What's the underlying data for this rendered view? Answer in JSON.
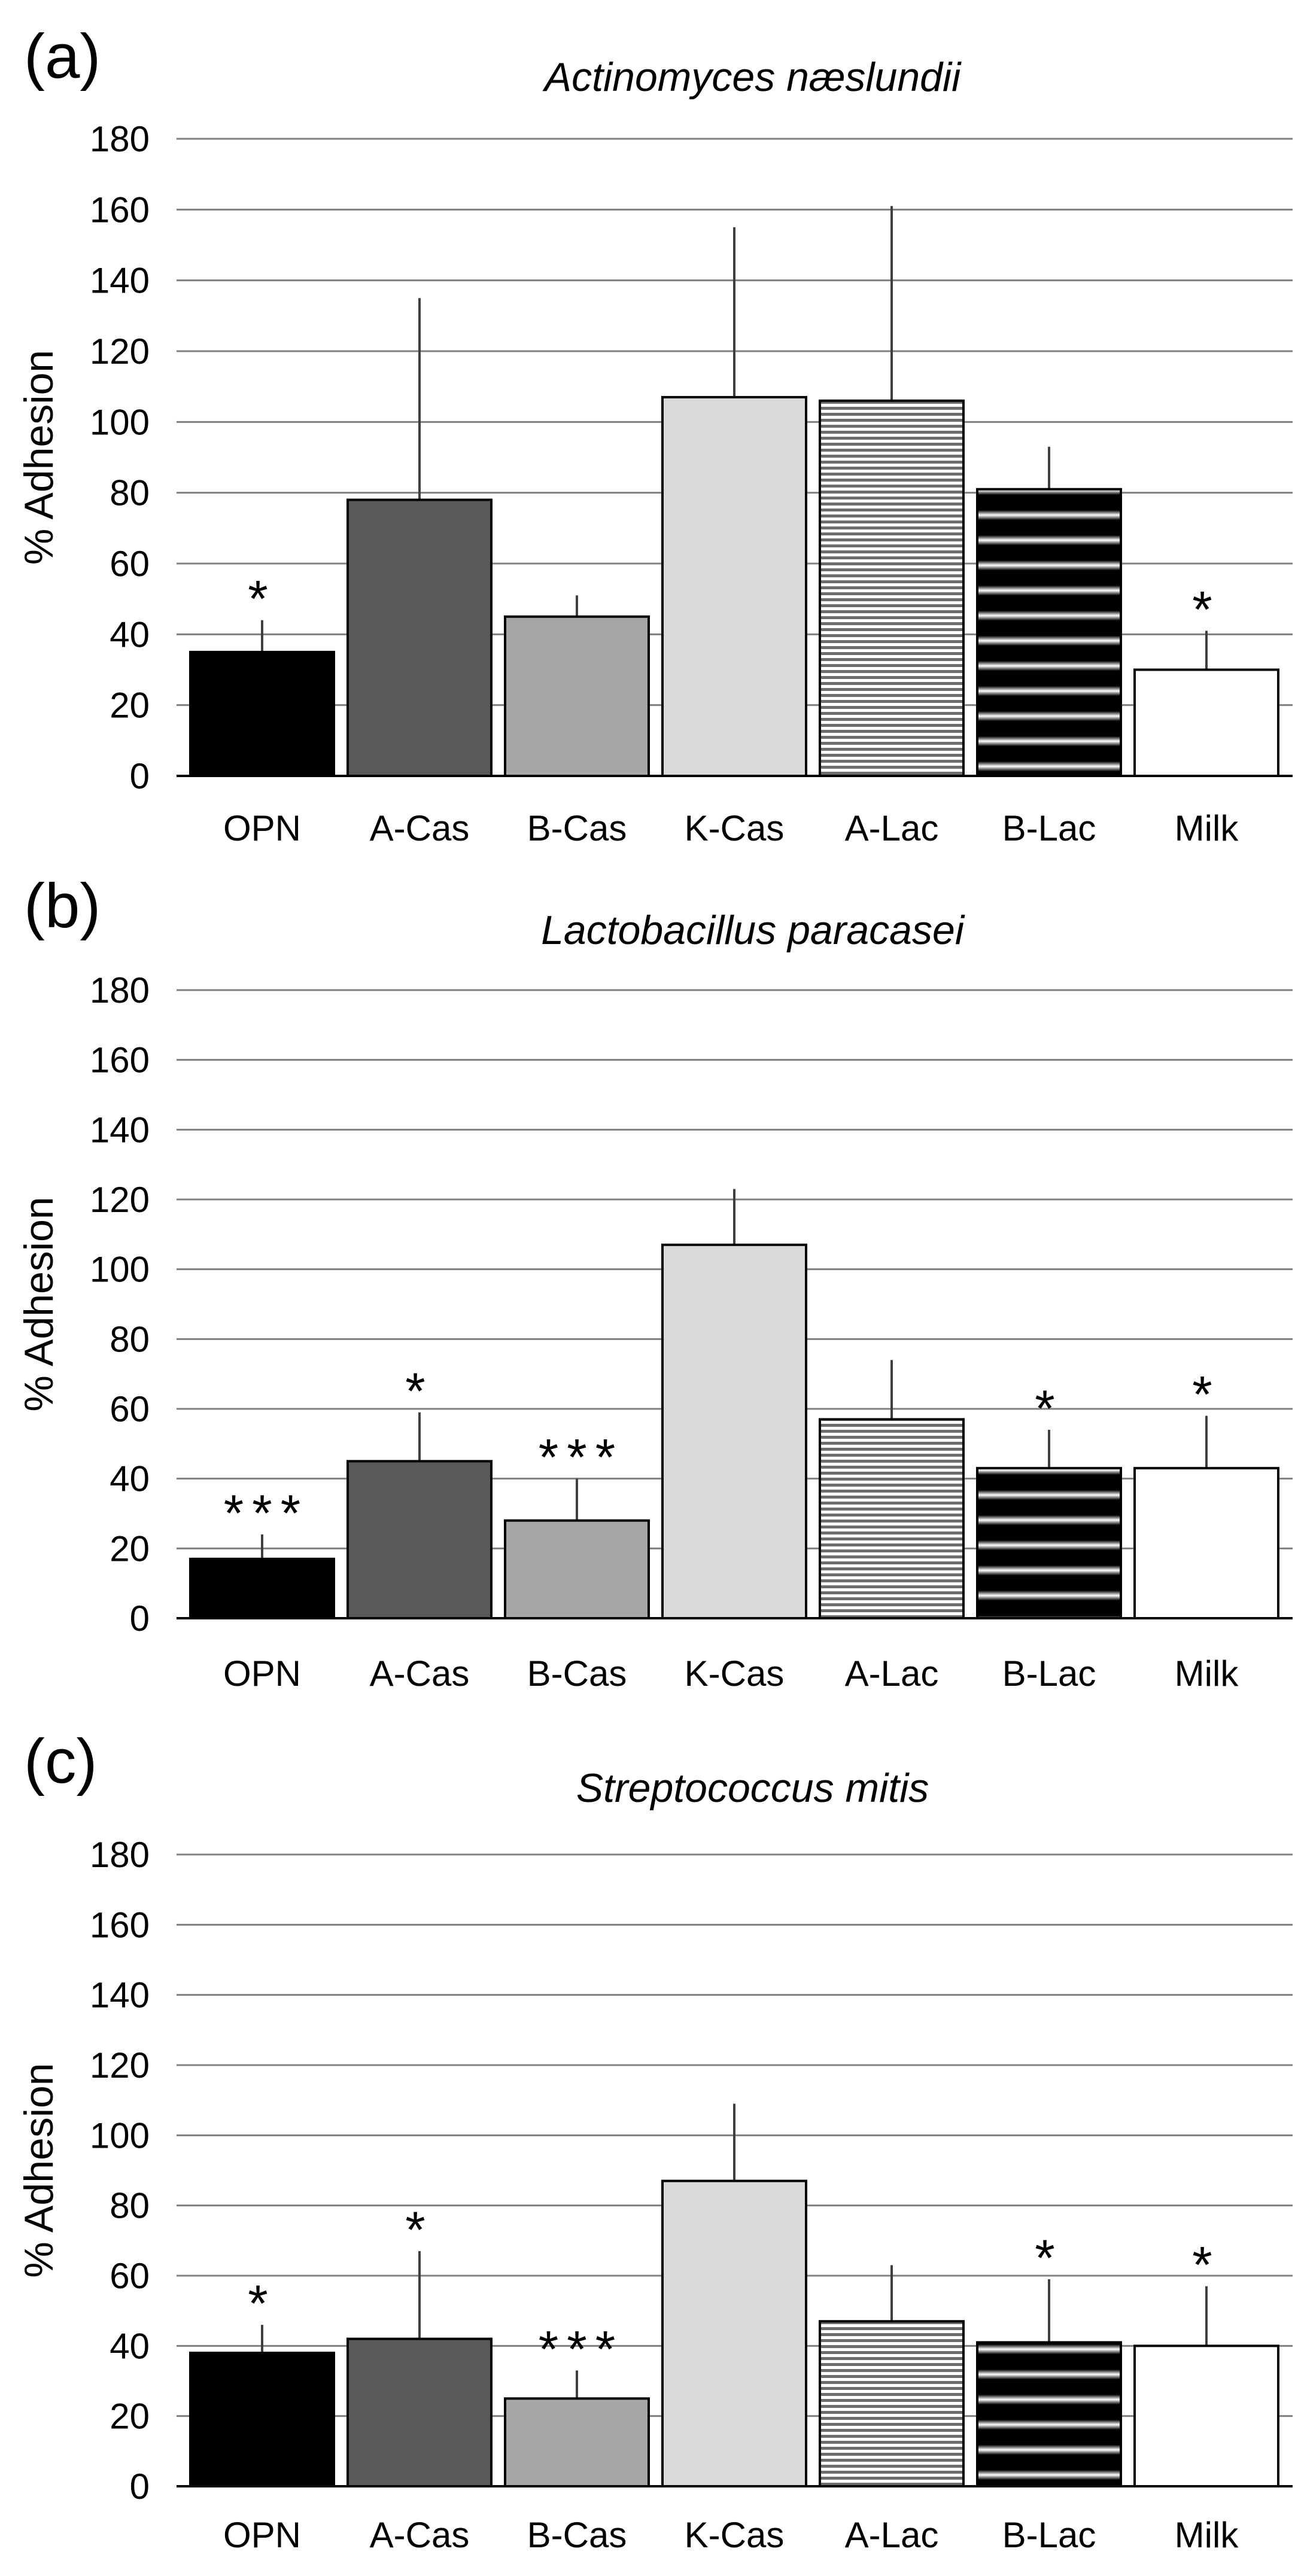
{
  "chart_data": [
    {
      "type": "bar",
      "panel": "(a)",
      "title": "Actinomyces næslundii",
      "ylabel": "% Adhesion",
      "xlabel": "",
      "ylim": [
        0,
        180
      ],
      "yticks": [
        0,
        20,
        40,
        60,
        80,
        100,
        120,
        140,
        160,
        180
      ],
      "categories": [
        "OPN",
        "A-Cas",
        "B-Cas",
        "K-Cas",
        "A-Lac",
        "B-Lac",
        "Milk"
      ],
      "values": [
        35,
        78,
        45,
        107,
        106,
        81,
        30
      ],
      "errors": [
        9,
        57,
        6,
        48,
        55,
        12,
        11
      ],
      "significance": [
        "*",
        "",
        "",
        "",
        "",
        "",
        "*"
      ]
    },
    {
      "type": "bar",
      "panel": "(b)",
      "title": "Lactobacillus paracasei",
      "ylabel": "% Adhesion",
      "xlabel": "",
      "ylim": [
        0,
        180
      ],
      "yticks": [
        0,
        20,
        40,
        60,
        80,
        100,
        120,
        140,
        160,
        180
      ],
      "categories": [
        "OPN",
        "A-Cas",
        "B-Cas",
        "K-Cas",
        "A-Lac",
        "B-Lac",
        "Milk"
      ],
      "values": [
        17,
        45,
        28,
        107,
        57,
        43,
        43
      ],
      "errors": [
        7,
        14,
        12,
        16,
        17,
        11,
        15
      ],
      "significance": [
        "***",
        "*",
        "***",
        "",
        "",
        "*",
        "*"
      ]
    },
    {
      "type": "bar",
      "panel": "(c)",
      "title": "Streptococcus mitis",
      "ylabel": "% Adhesion",
      "xlabel": "",
      "ylim": [
        0,
        180
      ],
      "yticks": [
        0,
        20,
        40,
        60,
        80,
        100,
        120,
        140,
        160,
        180
      ],
      "categories": [
        "OPN",
        "A-Cas",
        "B-Cas",
        "K-Cas",
        "A-Lac",
        "B-Lac",
        "Milk"
      ],
      "values": [
        38,
        42,
        25,
        87,
        47,
        41,
        40
      ],
      "errors": [
        8,
        25,
        8,
        22,
        16,
        18,
        17
      ],
      "significance": [
        "*",
        "*",
        "***",
        "",
        "",
        "*",
        "*"
      ]
    }
  ],
  "colors": {
    "OPN": "#000000",
    "A-Cas": "#595959",
    "B-Cas": "#a6a6a6",
    "K-Cas": "#d9d9d9",
    "A-Lac": "#7f7f7f",
    "B-Lac": "#000000",
    "Milk": "#ffffff",
    "grid": "#808080",
    "axis": "#000000"
  }
}
